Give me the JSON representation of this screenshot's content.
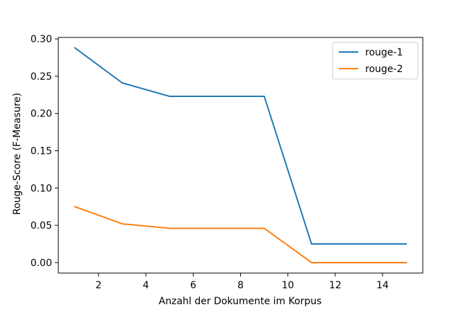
{
  "chart_data": {
    "type": "line",
    "title": "",
    "xlabel": "Anzahl der Dokumente im Korpus",
    "ylabel": "Rouge-Score (F-Measure)",
    "x": [
      1,
      3,
      5,
      7,
      9,
      11,
      13,
      15
    ],
    "series": [
      {
        "name": "rouge-1",
        "color": "#1f77b4",
        "values": [
          0.288,
          0.241,
          0.223,
          0.223,
          0.223,
          0.025,
          0.025,
          0.025
        ]
      },
      {
        "name": "rouge-2",
        "color": "#ff7f0e",
        "values": [
          0.075,
          0.052,
          0.046,
          0.046,
          0.046,
          0.0,
          0.0,
          0.0
        ]
      }
    ],
    "xlim": [
      0.3,
      15.7
    ],
    "ylim": [
      -0.014,
      0.302
    ],
    "xticks": [
      2,
      4,
      6,
      8,
      10,
      12,
      14
    ],
    "xtick_labels": [
      "2",
      "4",
      "6",
      "8",
      "10",
      "12",
      "14"
    ],
    "yticks": [
      0.0,
      0.05,
      0.1,
      0.15,
      0.2,
      0.25,
      0.3
    ],
    "ytick_labels": [
      "0.00",
      "0.05",
      "0.10",
      "0.15",
      "0.20",
      "0.25",
      "0.30"
    ],
    "grid": false,
    "legend_position": "top-right"
  }
}
